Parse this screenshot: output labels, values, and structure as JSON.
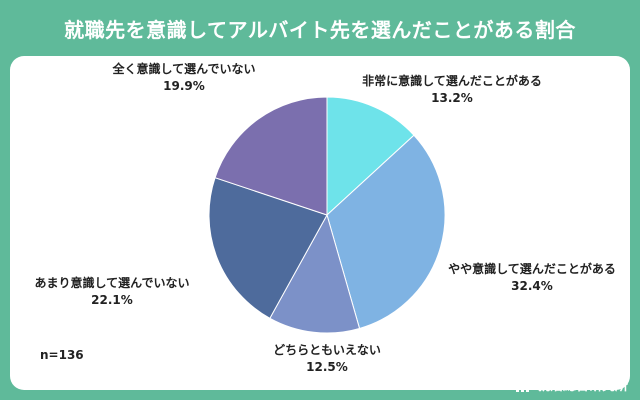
{
  "header": {
    "title": "就職先を意識してアルバイト先を選んだことがある割合"
  },
  "colors": {
    "background": "#5fba9a",
    "panel": "#ffffff",
    "slices": [
      "#6ee3ea",
      "#7fb3e3",
      "#7c91c8",
      "#4e6b9c",
      "#7b6fae"
    ]
  },
  "chart_data": {
    "type": "pie",
    "note": "n=136",
    "slices": [
      {
        "label": "非常に意識して選んだことがある",
        "value": 13.2,
        "value_label": "13.2%"
      },
      {
        "label": "やや意識して選んだことがある",
        "value": 32.4,
        "value_label": "32.4%"
      },
      {
        "label": "どちらともいえない",
        "value": 12.5,
        "value_label": "12.5%"
      },
      {
        "label": "あまり意識して選んでいない",
        "value": 22.1,
        "value_label": "22.1%"
      },
      {
        "label": "全く意識して選んでいない",
        "value": 19.9,
        "value_label": "19.9%"
      }
    ]
  },
  "footer": {
    "brand": "就活総合研究所",
    "icon": "bar-chart-icon"
  }
}
